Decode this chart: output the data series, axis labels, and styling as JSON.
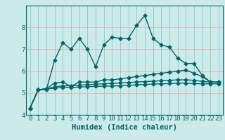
{
  "title": "",
  "xlabel": "Humidex (Indice chaleur)",
  "ylabel": "",
  "xlim": [
    -0.5,
    23.5
  ],
  "ylim": [
    4,
    9
  ],
  "yticks": [
    4,
    5,
    6,
    7,
    8
  ],
  "xticks": [
    0,
    1,
    2,
    3,
    4,
    5,
    6,
    7,
    8,
    9,
    10,
    11,
    12,
    13,
    14,
    15,
    16,
    17,
    18,
    19,
    20,
    21,
    22,
    23
  ],
  "bg_color": "#cceaea",
  "grid_color_h": "#e8b0b0",
  "grid_color_v": "#88c8c8",
  "line_color": "#006666",
  "line1": [
    4.3,
    5.15,
    5.15,
    6.5,
    7.3,
    7.0,
    7.5,
    7.0,
    6.2,
    7.2,
    7.55,
    7.5,
    7.5,
    8.1,
    8.55,
    7.5,
    7.2,
    7.1,
    6.6,
    6.35,
    6.35,
    5.8,
    5.5,
    5.5
  ],
  "line2": [
    4.3,
    5.15,
    5.2,
    5.45,
    5.5,
    5.3,
    5.5,
    5.5,
    5.5,
    5.6,
    5.6,
    5.65,
    5.7,
    5.75,
    5.8,
    5.85,
    5.9,
    5.95,
    6.0,
    6.05,
    5.9,
    5.75,
    5.5,
    5.5
  ],
  "line3": [
    4.3,
    5.15,
    5.18,
    5.28,
    5.33,
    5.33,
    5.36,
    5.38,
    5.4,
    5.42,
    5.44,
    5.46,
    5.48,
    5.5,
    5.52,
    5.54,
    5.56,
    5.58,
    5.6,
    5.6,
    5.58,
    5.53,
    5.5,
    5.5
  ],
  "line4": [
    4.3,
    5.15,
    5.18,
    5.22,
    5.25,
    5.25,
    5.27,
    5.29,
    5.3,
    5.31,
    5.32,
    5.33,
    5.35,
    5.37,
    5.39,
    5.41,
    5.42,
    5.43,
    5.45,
    5.45,
    5.43,
    5.42,
    5.42,
    5.42
  ],
  "marker": "D",
  "markersize": 2.5,
  "linewidth": 1.0,
  "tick_fontsize": 6.5
}
